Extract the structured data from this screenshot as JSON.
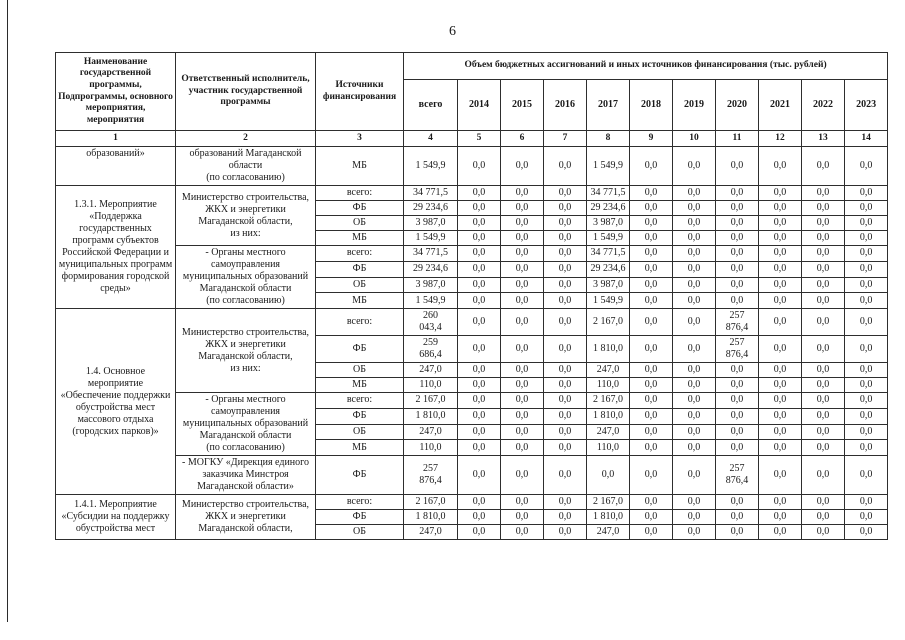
{
  "page": {
    "number": "6"
  },
  "table": {
    "header": {
      "col_program": "Наименование государственной программы, Подпрограммы, основного мероприятия, мероприятия",
      "col_executor": "Ответственный исполнитель, участник государственной программы",
      "col_source": "Источники финансирования",
      "group_title": "Объем бюджетных ассигнований и иных источников финансирования (тыс. рублей)",
      "subcols": [
        "всего",
        "2014",
        "2015",
        "2016",
        "2017",
        "2018",
        "2019",
        "2020",
        "2021",
        "2022",
        "2023"
      ],
      "col_numbers": [
        "1",
        "2",
        "3",
        "4",
        "5",
        "6",
        "7",
        "8",
        "9",
        "10",
        "11",
        "12",
        "13",
        "14"
      ]
    },
    "rows": [
      [
        {
          "t": "образований»",
          "cls": "c1 vtop",
          "name": "program-name-cell"
        },
        {
          "t": "образований Магаданской области\n(по согласованию)",
          "cls": "c2",
          "name": "executor-cell"
        },
        {
          "t": "МБ",
          "cls": "c3",
          "name": "source-cell"
        },
        {
          "t": "1 549,9"
        },
        {
          "t": "0,0"
        },
        {
          "t": "0,0"
        },
        {
          "t": "0,0"
        },
        {
          "t": "1 549,9"
        },
        {
          "t": "0,0"
        },
        {
          "t": "0,0"
        },
        {
          "t": "0,0"
        },
        {
          "t": "0,0"
        },
        {
          "t": "0,0"
        },
        {
          "t": "0,0"
        }
      ],
      [
        {
          "t": "1.3.1. Мероприятие «Поддержка государственных программ субъектов Российской Федерации и муниципальных программ формирования городской среды»",
          "rs": 8,
          "cls": "c1",
          "name": "program-name-cell"
        },
        {
          "t": "Министерство строительства, ЖКХ и энергетики Магаданской области,\nиз них:",
          "rs": 4,
          "cls": "c2",
          "name": "executor-cell"
        },
        {
          "t": "всего:",
          "cls": "c3",
          "name": "source-cell"
        },
        {
          "t": "34 771,5"
        },
        {
          "t": "0,0"
        },
        {
          "t": "0,0"
        },
        {
          "t": "0,0"
        },
        {
          "t": "34 771,5"
        },
        {
          "t": "0,0"
        },
        {
          "t": "0,0"
        },
        {
          "t": "0,0"
        },
        {
          "t": "0,0"
        },
        {
          "t": "0,0"
        },
        {
          "t": "0,0"
        }
      ],
      [
        {
          "t": "ФБ",
          "cls": "c3",
          "name": "source-cell"
        },
        {
          "t": "29 234,6"
        },
        {
          "t": "0,0"
        },
        {
          "t": "0,0"
        },
        {
          "t": "0,0"
        },
        {
          "t": "29 234,6"
        },
        {
          "t": "0,0"
        },
        {
          "t": "0,0"
        },
        {
          "t": "0,0"
        },
        {
          "t": "0,0"
        },
        {
          "t": "0,0"
        },
        {
          "t": "0,0"
        }
      ],
      [
        {
          "t": "ОБ",
          "cls": "c3",
          "name": "source-cell"
        },
        {
          "t": "3 987,0"
        },
        {
          "t": "0,0"
        },
        {
          "t": "0,0"
        },
        {
          "t": "0,0"
        },
        {
          "t": "3 987,0"
        },
        {
          "t": "0,0"
        },
        {
          "t": "0,0"
        },
        {
          "t": "0,0"
        },
        {
          "t": "0,0"
        },
        {
          "t": "0,0"
        },
        {
          "t": "0,0"
        }
      ],
      [
        {
          "t": "МБ",
          "cls": "c3",
          "name": "source-cell"
        },
        {
          "t": "1 549,9"
        },
        {
          "t": "0,0"
        },
        {
          "t": "0,0"
        },
        {
          "t": "0,0"
        },
        {
          "t": "1 549,9"
        },
        {
          "t": "0,0"
        },
        {
          "t": "0,0"
        },
        {
          "t": "0,0"
        },
        {
          "t": "0,0"
        },
        {
          "t": "0,0"
        },
        {
          "t": "0,0"
        }
      ],
      [
        {
          "t": "- Органы местного самоуправления муниципальных образований Магаданской области\n(по согласованию)",
          "rs": 4,
          "cls": "c2",
          "name": "executor-cell"
        },
        {
          "t": "всего:",
          "cls": "c3",
          "name": "source-cell"
        },
        {
          "t": "34 771,5"
        },
        {
          "t": "0,0"
        },
        {
          "t": "0,0"
        },
        {
          "t": "0,0"
        },
        {
          "t": "34 771,5"
        },
        {
          "t": "0,0"
        },
        {
          "t": "0,0"
        },
        {
          "t": "0,0"
        },
        {
          "t": "0,0"
        },
        {
          "t": "0,0"
        },
        {
          "t": "0,0"
        }
      ],
      [
        {
          "t": "ФБ",
          "cls": "c3",
          "name": "source-cell"
        },
        {
          "t": "29 234,6"
        },
        {
          "t": "0,0"
        },
        {
          "t": "0,0"
        },
        {
          "t": "0,0"
        },
        {
          "t": "29 234,6"
        },
        {
          "t": "0,0"
        },
        {
          "t": "0,0"
        },
        {
          "t": "0,0"
        },
        {
          "t": "0,0"
        },
        {
          "t": "0,0"
        },
        {
          "t": "0,0"
        }
      ],
      [
        {
          "t": "ОБ",
          "cls": "c3",
          "name": "source-cell"
        },
        {
          "t": "3 987,0"
        },
        {
          "t": "0,0"
        },
        {
          "t": "0,0"
        },
        {
          "t": "0,0"
        },
        {
          "t": "3 987,0"
        },
        {
          "t": "0,0"
        },
        {
          "t": "0,0"
        },
        {
          "t": "0,0"
        },
        {
          "t": "0,0"
        },
        {
          "t": "0,0"
        },
        {
          "t": "0,0"
        }
      ],
      [
        {
          "t": "МБ",
          "cls": "c3",
          "name": "source-cell"
        },
        {
          "t": "1 549,9"
        },
        {
          "t": "0,0"
        },
        {
          "t": "0,0"
        },
        {
          "t": "0,0"
        },
        {
          "t": "1 549,9"
        },
        {
          "t": "0,0"
        },
        {
          "t": "0,0"
        },
        {
          "t": "0,0"
        },
        {
          "t": "0,0"
        },
        {
          "t": "0,0"
        },
        {
          "t": "0,0"
        }
      ],
      [
        {
          "t": "1.4. Основное мероприятие «Обеспечение поддержки обустройства мест массового отдыха (городских парков)»",
          "rs": 9,
          "cls": "c1",
          "name": "program-name-cell"
        },
        {
          "t": "Министерство строительства, ЖКХ и энергетики Магаданской области,\nиз них:",
          "rs": 4,
          "cls": "c2",
          "name": "executor-cell"
        },
        {
          "t": "всего:",
          "cls": "c3",
          "name": "source-cell"
        },
        {
          "t": "260\n043,4"
        },
        {
          "t": "0,0"
        },
        {
          "t": "0,0"
        },
        {
          "t": "0,0"
        },
        {
          "t": "2 167,0"
        },
        {
          "t": "0,0"
        },
        {
          "t": "0,0"
        },
        {
          "t": "257\n876,4"
        },
        {
          "t": "0,0"
        },
        {
          "t": "0,0"
        },
        {
          "t": "0,0"
        }
      ],
      [
        {
          "t": "ФБ",
          "cls": "c3",
          "name": "source-cell"
        },
        {
          "t": "259\n686,4"
        },
        {
          "t": "0,0"
        },
        {
          "t": "0,0"
        },
        {
          "t": "0,0"
        },
        {
          "t": "1 810,0"
        },
        {
          "t": "0,0"
        },
        {
          "t": "0,0"
        },
        {
          "t": "257\n876,4"
        },
        {
          "t": "0,0"
        },
        {
          "t": "0,0"
        },
        {
          "t": "0,0"
        }
      ],
      [
        {
          "t": "ОБ",
          "cls": "c3",
          "name": "source-cell"
        },
        {
          "t": "247,0"
        },
        {
          "t": "0,0"
        },
        {
          "t": "0,0"
        },
        {
          "t": "0,0"
        },
        {
          "t": "247,0"
        },
        {
          "t": "0,0"
        },
        {
          "t": "0,0"
        },
        {
          "t": "0,0"
        },
        {
          "t": "0,0"
        },
        {
          "t": "0,0"
        },
        {
          "t": "0,0"
        }
      ],
      [
        {
          "t": "МБ",
          "cls": "c3",
          "name": "source-cell"
        },
        {
          "t": "110,0"
        },
        {
          "t": "0,0"
        },
        {
          "t": "0,0"
        },
        {
          "t": "0,0"
        },
        {
          "t": "110,0"
        },
        {
          "t": "0,0"
        },
        {
          "t": "0,0"
        },
        {
          "t": "0,0"
        },
        {
          "t": "0,0"
        },
        {
          "t": "0,0"
        },
        {
          "t": "0,0"
        }
      ],
      [
        {
          "t": "- Органы местного самоуправления муниципальных образований Магаданской области\n(по согласованию)",
          "rs": 4,
          "cls": "c2",
          "name": "executor-cell"
        },
        {
          "t": "всего:",
          "cls": "c3",
          "name": "source-cell"
        },
        {
          "t": "2 167,0"
        },
        {
          "t": "0,0"
        },
        {
          "t": "0,0"
        },
        {
          "t": "0,0"
        },
        {
          "t": "2 167,0"
        },
        {
          "t": "0,0"
        },
        {
          "t": "0,0"
        },
        {
          "t": "0,0"
        },
        {
          "t": "0,0"
        },
        {
          "t": "0,0"
        },
        {
          "t": "0,0"
        }
      ],
      [
        {
          "t": "ФБ",
          "cls": "c3",
          "name": "source-cell"
        },
        {
          "t": "1 810,0"
        },
        {
          "t": "0,0"
        },
        {
          "t": "0,0"
        },
        {
          "t": "0,0"
        },
        {
          "t": "1 810,0"
        },
        {
          "t": "0,0"
        },
        {
          "t": "0,0"
        },
        {
          "t": "0,0"
        },
        {
          "t": "0,0"
        },
        {
          "t": "0,0"
        },
        {
          "t": "0,0"
        }
      ],
      [
        {
          "t": "ОБ",
          "cls": "c3",
          "name": "source-cell"
        },
        {
          "t": "247,0"
        },
        {
          "t": "0,0"
        },
        {
          "t": "0,0"
        },
        {
          "t": "0,0"
        },
        {
          "t": "247,0"
        },
        {
          "t": "0,0"
        },
        {
          "t": "0,0"
        },
        {
          "t": "0,0"
        },
        {
          "t": "0,0"
        },
        {
          "t": "0,0"
        },
        {
          "t": "0,0"
        }
      ],
      [
        {
          "t": "МБ",
          "cls": "c3",
          "name": "source-cell"
        },
        {
          "t": "110,0"
        },
        {
          "t": "0,0"
        },
        {
          "t": "0,0"
        },
        {
          "t": "0,0"
        },
        {
          "t": "110,0"
        },
        {
          "t": "0,0"
        },
        {
          "t": "0,0"
        },
        {
          "t": "0,0"
        },
        {
          "t": "0,0"
        },
        {
          "t": "0,0"
        },
        {
          "t": "0,0"
        }
      ],
      [
        {
          "t": "- МОГКУ «Дирекция единого заказчика Минстроя Магаданской области»",
          "cls": "c2",
          "name": "executor-cell"
        },
        {
          "t": "ФБ",
          "cls": "c3",
          "name": "source-cell"
        },
        {
          "t": "257\n876,4"
        },
        {
          "t": "0,0"
        },
        {
          "t": "0,0"
        },
        {
          "t": "0,0"
        },
        {
          "t": "0,0"
        },
        {
          "t": "0,0"
        },
        {
          "t": "0,0"
        },
        {
          "t": "257\n876,4"
        },
        {
          "t": "0,0"
        },
        {
          "t": "0,0"
        },
        {
          "t": "0,0"
        }
      ],
      [
        {
          "t": "1.4.1. Мероприятие «Субсидии на поддержку обустройства мест",
          "rs": 3,
          "cls": "c1",
          "name": "program-name-cell"
        },
        {
          "t": "Министерство строительства, ЖКХ и энергетики Магаданской области,",
          "rs": 3,
          "cls": "c2",
          "name": "executor-cell"
        },
        {
          "t": "всего:",
          "cls": "c3",
          "name": "source-cell"
        },
        {
          "t": "2 167,0"
        },
        {
          "t": "0,0"
        },
        {
          "t": "0,0"
        },
        {
          "t": "0,0"
        },
        {
          "t": "2 167,0"
        },
        {
          "t": "0,0"
        },
        {
          "t": "0,0"
        },
        {
          "t": "0,0"
        },
        {
          "t": "0,0"
        },
        {
          "t": "0,0"
        },
        {
          "t": "0,0"
        }
      ],
      [
        {
          "t": "ФБ",
          "cls": "c3",
          "name": "source-cell"
        },
        {
          "t": "1 810,0"
        },
        {
          "t": "0,0"
        },
        {
          "t": "0,0"
        },
        {
          "t": "0,0"
        },
        {
          "t": "1 810,0"
        },
        {
          "t": "0,0"
        },
        {
          "t": "0,0"
        },
        {
          "t": "0,0"
        },
        {
          "t": "0,0"
        },
        {
          "t": "0,0"
        },
        {
          "t": "0,0"
        }
      ],
      [
        {
          "t": "ОБ",
          "cls": "c3",
          "name": "source-cell"
        },
        {
          "t": "247,0"
        },
        {
          "t": "0,0"
        },
        {
          "t": "0,0"
        },
        {
          "t": "0,0"
        },
        {
          "t": "247,0"
        },
        {
          "t": "0,0"
        },
        {
          "t": "0,0"
        },
        {
          "t": "0,0"
        },
        {
          "t": "0,0"
        },
        {
          "t": "0,0"
        },
        {
          "t": "0,0"
        }
      ]
    ]
  }
}
